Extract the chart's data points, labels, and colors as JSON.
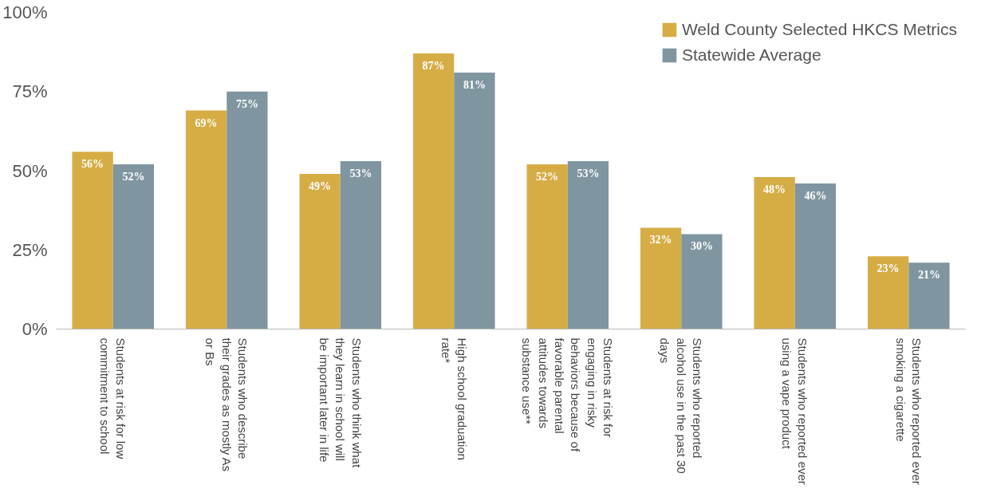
{
  "chart_data": {
    "type": "bar",
    "categories": [
      "Students at risk for low commitment to school",
      "Students who describe their grades as mostly As or Bs",
      "Students who think what they learn in school will be important later in life",
      "High school graduation rate*",
      "Students at risk for engaging in risky behaviors because of favorable parental attitudes towards substance use**",
      "Students who reported alcohol use in the past 30 days",
      "Students who reported ever using a vape product",
      "Students who reported ever smoking a cigarette"
    ],
    "series": [
      {
        "name": "Weld County Selected HKCS Metrics",
        "color": "#d6ad45",
        "values": [
          56,
          69,
          49,
          87,
          52,
          32,
          48,
          23
        ],
        "value_labels": [
          "56%",
          "69%",
          "49%",
          "87%",
          "52%",
          "32%",
          "48%",
          "23%"
        ]
      },
      {
        "name": "Statewide Average",
        "color": "#7f96a1",
        "values": [
          52,
          75,
          53,
          81,
          53,
          30,
          46,
          21
        ],
        "value_labels": [
          "52%",
          "75%",
          "53%",
          "81%",
          "53%",
          "30%",
          "46%",
          "21%"
        ]
      }
    ],
    "ylim": [
      0,
      100
    ],
    "yticks": [
      {
        "value": 0,
        "label": "0%"
      },
      {
        "value": 25,
        "label": "25%"
      },
      {
        "value": 50,
        "label": "50%"
      },
      {
        "value": 75,
        "label": "75%"
      },
      {
        "value": 100,
        "label": "100%"
      }
    ],
    "grid": false,
    "legend": "top right"
  }
}
